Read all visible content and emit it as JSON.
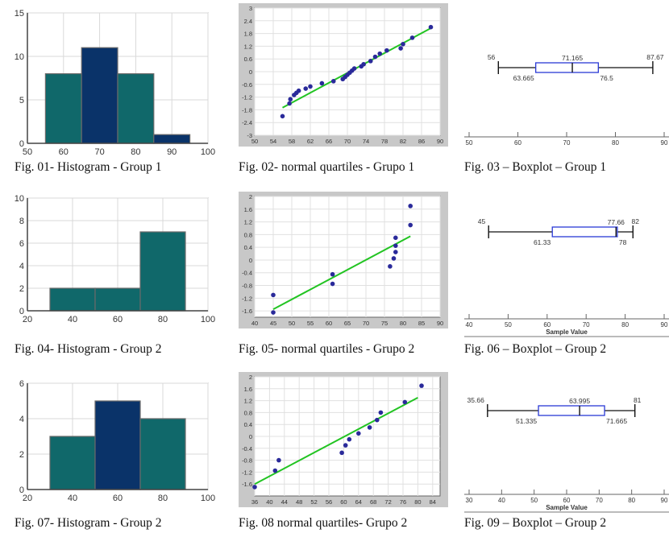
{
  "colors": {
    "hist_teal": "#10686a",
    "hist_navy": "#0a3369",
    "qq_points": "#2a2a9a",
    "qq_line": "#22c422",
    "qq_bg": "#c8c8c8",
    "box_blue": "#2a3ad6",
    "box_black": "#111111"
  },
  "chart_data": [
    {
      "id": "fig01",
      "type": "bar",
      "kind": "histogram",
      "caption": "Fig. 01- Histogram - Group 1",
      "bins": [
        [
          55,
          65
        ],
        [
          65,
          75
        ],
        [
          75,
          85
        ],
        [
          85,
          95
        ]
      ],
      "values": [
        8,
        11,
        8,
        1
      ],
      "bar_colors": [
        "teal",
        "navy",
        "teal",
        "navy"
      ],
      "xlim": [
        50,
        100
      ],
      "ylim": [
        0,
        15
      ],
      "xticks": [
        50,
        60,
        70,
        80,
        90,
        100
      ],
      "yticks": [
        0,
        5,
        10,
        15
      ],
      "grid": true,
      "xlabel": "",
      "ylabel": ""
    },
    {
      "id": "fig02",
      "type": "scatter",
      "kind": "normal-quantile",
      "caption": "Fig. 02- normal quartiles - Grupo 1",
      "xlim": [
        50,
        90
      ],
      "ylim": [
        -3,
        3
      ],
      "xticks": [
        50,
        54,
        58,
        62,
        66,
        70,
        74,
        78,
        82,
        86,
        90
      ],
      "yticks": [
        3,
        2.4,
        1.8,
        1.2,
        0.6,
        0,
        -0.6,
        -1.2,
        -1.8,
        -2.4,
        -3
      ],
      "x": [
        56,
        57.5,
        57.7,
        58.5,
        59,
        59.5,
        61,
        62,
        64.5,
        67,
        69,
        69.5,
        70,
        70.5,
        71,
        71.5,
        73,
        73.5,
        75,
        76,
        77,
        78.5,
        81.5,
        82,
        84,
        88
      ],
      "y": [
        -2.1,
        -1.5,
        -1.3,
        -1.1,
        -1,
        -0.9,
        -0.8,
        -0.7,
        -0.55,
        -0.45,
        -0.35,
        -0.25,
        -0.15,
        -0.05,
        0.05,
        0.15,
        0.25,
        0.35,
        0.5,
        0.7,
        0.85,
        1.0,
        1.1,
        1.3,
        1.6,
        2.1
      ],
      "fit_line": {
        "x": [
          56,
          88
        ],
        "y": [
          -1.7,
          2.05
        ]
      },
      "grid": true
    },
    {
      "id": "fig03",
      "type": "boxplot",
      "caption": "Fig. 03 – Boxplot – Group 1",
      "min": 56,
      "q1": 63.665,
      "median": 71.165,
      "q3": 76.5,
      "max": 87.67,
      "labels": {
        "min": "56",
        "q1": "63.665",
        "median": "71.165",
        "q3": "76.5",
        "max": "87.67"
      },
      "xlim": [
        50,
        90
      ],
      "xticks": [
        50,
        60,
        70,
        80,
        90
      ],
      "xlabel": ""
    },
    {
      "id": "fig04",
      "type": "bar",
      "kind": "histogram",
      "caption": "Fig. 04- Histogram - Group 2",
      "bins": [
        [
          30,
          50
        ],
        [
          50,
          70
        ],
        [
          70,
          90
        ]
      ],
      "values": [
        2,
        2,
        7
      ],
      "bar_colors": [
        "teal",
        "teal",
        "teal"
      ],
      "xlim": [
        20,
        100
      ],
      "ylim": [
        0,
        10
      ],
      "xticks": [
        20,
        40,
        60,
        80,
        100
      ],
      "yticks": [
        0,
        2,
        4,
        6,
        8,
        10
      ],
      "grid": true,
      "xlabel": "",
      "ylabel": ""
    },
    {
      "id": "fig05",
      "type": "scatter",
      "kind": "normal-quantile",
      "caption": "Fig. 05- normal quartiles - Grupo 2",
      "xlim": [
        40,
        90
      ],
      "ylim": [
        -1.8,
        2
      ],
      "xticks": [
        40,
        45,
        50,
        55,
        60,
        65,
        70,
        75,
        80,
        85,
        90
      ],
      "yticks": [
        2,
        1.6,
        1.2,
        0.8,
        0.4,
        0,
        -0.4,
        -0.8,
        -1.2,
        -1.6
      ],
      "x": [
        45,
        45,
        61,
        61,
        76.5,
        77.5,
        78,
        78,
        78,
        82,
        82
      ],
      "y": [
        -1.65,
        -1.1,
        -0.75,
        -0.45,
        -0.2,
        0.05,
        0.25,
        0.45,
        0.7,
        1.1,
        1.7
      ],
      "fit_line": {
        "x": [
          45,
          82
        ],
        "y": [
          -1.55,
          0.75
        ]
      },
      "grid": true
    },
    {
      "id": "fig06",
      "type": "boxplot",
      "caption": "Fig. 06 – Boxplot – Group 2",
      "min": 45,
      "q1": 61.33,
      "median": 77.66,
      "q3": 78,
      "max": 82,
      "labels": {
        "min": "45",
        "q1": "61.33",
        "median": "77.66",
        "q3": "78",
        "max": "82"
      },
      "xlim": [
        40,
        90
      ],
      "xticks": [
        40,
        50,
        60,
        70,
        80,
        90
      ],
      "xlabel": "Sample Value"
    },
    {
      "id": "fig07",
      "type": "bar",
      "kind": "histogram",
      "caption": "Fig. 07- Histogram - Group 2",
      "bins": [
        [
          30,
          50
        ],
        [
          50,
          70
        ],
        [
          70,
          90
        ]
      ],
      "values": [
        3,
        5,
        4
      ],
      "bar_colors": [
        "teal",
        "navy",
        "teal"
      ],
      "xlim": [
        20,
        100
      ],
      "ylim": [
        0,
        6
      ],
      "xticks": [
        20,
        40,
        60,
        80,
        100
      ],
      "yticks": [
        0,
        2,
        4,
        6
      ],
      "grid": true,
      "xlabel": "",
      "ylabel": ""
    },
    {
      "id": "fig08",
      "type": "scatter",
      "kind": "normal-quantile",
      "caption": "Fig. 08 normal quartiles- Grupo 2",
      "xlim": [
        36,
        86
      ],
      "ylim": [
        -2,
        2
      ],
      "xticks": [
        36,
        40,
        44,
        48,
        52,
        56,
        60,
        64,
        68,
        72,
        76,
        80,
        84
      ],
      "yticks": [
        2,
        1.6,
        1.2,
        0.8,
        0.4,
        0,
        -0.4,
        -0.8,
        -1.2,
        -1.6
      ],
      "x": [
        36,
        41.5,
        42.5,
        59.5,
        60.5,
        61.5,
        64,
        67,
        69,
        70,
        76.5,
        81
      ],
      "y": [
        -1.7,
        -1.15,
        -0.8,
        -0.55,
        -0.3,
        -0.1,
        0.1,
        0.3,
        0.55,
        0.8,
        1.15,
        1.7
      ],
      "fit_line": {
        "x": [
          36,
          80
        ],
        "y": [
          -1.6,
          1.3
        ]
      },
      "grid": true
    },
    {
      "id": "fig09",
      "type": "boxplot",
      "caption": "Fig. 09 – Boxplot – Group 2",
      "min": 35.66,
      "q1": 51.335,
      "median": 63.995,
      "q3": 71.665,
      "max": 81,
      "labels": {
        "min": "35.66",
        "q1": "51.335",
        "median": "63.995",
        "q3": "71.665",
        "max": "81"
      },
      "xlim": [
        30,
        90
      ],
      "xticks": [
        30,
        40,
        50,
        60,
        70,
        80,
        90
      ],
      "xlabel": "Sample Value"
    }
  ]
}
